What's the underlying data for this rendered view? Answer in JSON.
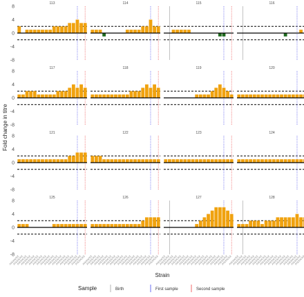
{
  "chart_data": {
    "type": "bar",
    "ylabel": "Fold change in titre",
    "xlabel": "Strain",
    "ylim": [
      -8,
      8
    ],
    "yticks": [
      8,
      4,
      0,
      -4,
      -8
    ],
    "threshold_lines": [
      2,
      -2
    ],
    "x_tick_label": "A/XXX/XX",
    "legend": {
      "title": "Sample",
      "position": "bottom",
      "items": [
        {
          "label": "Birth",
          "color": "#b3b3b3"
        },
        {
          "label": "First sample",
          "color": "#6a6cf0"
        },
        {
          "label": "Second sample",
          "color": "#f06a6a"
        }
      ]
    },
    "colors": {
      "positive": "#f0a20f",
      "negative": "#1e6b1e"
    },
    "panels": [
      {
        "id": "113",
        "values": [
          2,
          0,
          1,
          1,
          1,
          1,
          1,
          1,
          1,
          2,
          2,
          2,
          2,
          3,
          3,
          4,
          3,
          3
        ],
        "birth": null,
        "first": 15,
        "second": 17
      },
      {
        "id": "114",
        "values": [
          1,
          1,
          1,
          -1,
          0,
          0,
          0,
          0,
          0,
          1,
          1,
          1,
          1,
          2,
          2,
          4,
          2,
          2
        ],
        "birth": null,
        "first": 15,
        "second": 17
      },
      {
        "id": "115",
        "values": [
          0,
          0,
          1,
          1,
          1,
          1,
          1,
          0,
          0,
          0,
          0,
          0,
          0,
          0,
          -1,
          -1,
          0,
          0
        ],
        "birth": 1,
        "first": 15,
        "second": 17
      },
      {
        "id": "116",
        "values": [
          0,
          0,
          0,
          0,
          0,
          0,
          0,
          0,
          0,
          0,
          0,
          0,
          -1,
          0,
          0,
          0,
          1,
          0
        ],
        "birth": 1,
        "first": 15,
        "second": 17
      },
      {
        "id": "117",
        "values": [
          1,
          1,
          2,
          2,
          2,
          1,
          1,
          1,
          1,
          1,
          2,
          2,
          2,
          3,
          4,
          3,
          4,
          3
        ],
        "birth": null,
        "first": 15,
        "second": 17
      },
      {
        "id": "118",
        "values": [
          1,
          1,
          1,
          1,
          1,
          1,
          1,
          1,
          1,
          1,
          2,
          2,
          2,
          3,
          4,
          3,
          4,
          3
        ],
        "birth": null,
        "first": 15,
        "second": 17
      },
      {
        "id": "119",
        "values": [
          0,
          0,
          0,
          0,
          0,
          0,
          0,
          0,
          1,
          1,
          1,
          1,
          2,
          3,
          4,
          3,
          2,
          1
        ],
        "birth": null,
        "first": 15,
        "second": 17
      },
      {
        "id": "120",
        "values": [
          1,
          1,
          1,
          1,
          1,
          1,
          1,
          1,
          1,
          1,
          1,
          1,
          1,
          1,
          1,
          1,
          1,
          1
        ],
        "birth": null,
        "first": 15,
        "second": 17
      },
      {
        "id": "121",
        "values": [
          1,
          1,
          1,
          1,
          1,
          1,
          1,
          1,
          1,
          1,
          1,
          1,
          1,
          2,
          2,
          3,
          3,
          3
        ],
        "birth": null,
        "first": 15,
        "second": 17
      },
      {
        "id": "122",
        "values": [
          2,
          2,
          2,
          1,
          1,
          1,
          1,
          1,
          1,
          1,
          1,
          1,
          1,
          1,
          1,
          1,
          1,
          1
        ],
        "birth": null,
        "first": 15,
        "second": 17
      },
      {
        "id": "123",
        "values": [
          1,
          1,
          1,
          1,
          1,
          1,
          1,
          1,
          1,
          1,
          1,
          1,
          1,
          1,
          1,
          1,
          1,
          1
        ],
        "birth": null,
        "first": 15,
        "second": 17
      },
      {
        "id": "124",
        "values": [
          1,
          1,
          1,
          1,
          1,
          1,
          1,
          1,
          1,
          1,
          1,
          1,
          1,
          1,
          1,
          1,
          1,
          1
        ],
        "birth": null,
        "first": 15,
        "second": 17
      },
      {
        "id": "125",
        "values": [
          1,
          1,
          1,
          0,
          0,
          0,
          0,
          0,
          0,
          1,
          1,
          1,
          1,
          1,
          1,
          1,
          1,
          1
        ],
        "birth": null,
        "first": 15,
        "second": 17
      },
      {
        "id": "126",
        "values": [
          1,
          1,
          1,
          1,
          1,
          1,
          1,
          1,
          1,
          1,
          1,
          1,
          1,
          2,
          3,
          3,
          3,
          3
        ],
        "birth": null,
        "first": 15,
        "second": 17
      },
      {
        "id": "127",
        "values": [
          0,
          0,
          0,
          0,
          0,
          0,
          0,
          0,
          1,
          2,
          3,
          4,
          5,
          6,
          6,
          6,
          5,
          4
        ],
        "birth": 1,
        "first": 15,
        "second": 17
      },
      {
        "id": "128",
        "values": [
          1,
          1,
          1,
          2,
          2,
          2,
          1,
          2,
          2,
          2,
          3,
          3,
          3,
          3,
          3,
          4,
          3,
          3
        ],
        "birth": 1,
        "first": 15,
        "second": 17
      }
    ]
  }
}
